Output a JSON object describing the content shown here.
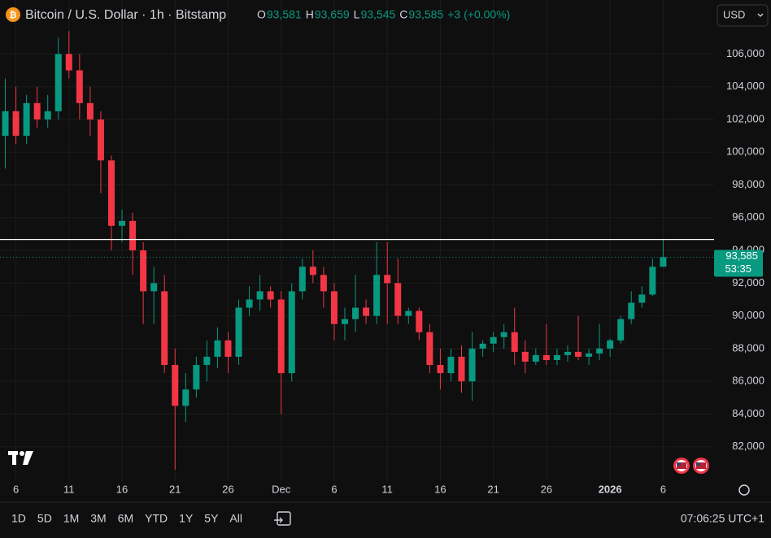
{
  "header": {
    "symbol": "Bitcoin / U.S. Dollar · 1h · Bitstamp",
    "ohlc": [
      {
        "label": "O",
        "value": "93,581"
      },
      {
        "label": "H",
        "value": "93,659"
      },
      {
        "label": "L",
        "value": "93,545"
      },
      {
        "label": "C",
        "value": "93,585"
      }
    ],
    "change": "+3 (+0.00%)",
    "currency": "USD"
  },
  "footer": {
    "ranges": [
      "1D",
      "5D",
      "1M",
      "3M",
      "6M",
      "YTD",
      "1Y",
      "5Y",
      "All"
    ],
    "clock": "07:06:25 UTC+1"
  },
  "chart_data": {
    "type": "candlestick",
    "up_color": "#089981",
    "down_color": "#f23645",
    "xlim": [
      3.5,
      70.8
    ],
    "ylim": [
      79900,
      109300
    ],
    "xticks": [
      {
        "value": 5,
        "label": "6"
      },
      {
        "value": 10,
        "label": "11"
      },
      {
        "value": 15,
        "label": "16"
      },
      {
        "value": 20,
        "label": "21"
      },
      {
        "value": 25,
        "label": "26"
      },
      {
        "value": 30,
        "label": "Dec"
      },
      {
        "value": 35,
        "label": "6"
      },
      {
        "value": 40,
        "label": "11"
      },
      {
        "value": 45,
        "label": "16"
      },
      {
        "value": 50,
        "label": "21"
      },
      {
        "value": 55,
        "label": "26"
      },
      {
        "value": 61,
        "label": "2026"
      },
      {
        "value": 66,
        "label": "6"
      }
    ],
    "yticks": [
      {
        "value": 82000,
        "label": "82,000"
      },
      {
        "value": 84000,
        "label": "84,000"
      },
      {
        "value": 86000,
        "label": "86,000"
      },
      {
        "value": 88000,
        "label": "88,000"
      },
      {
        "value": 90000,
        "label": "90,000"
      },
      {
        "value": 92000,
        "label": "92,000"
      },
      {
        "value": 94000,
        "label": "94,000"
      },
      {
        "value": 96000,
        "label": "96,000"
      },
      {
        "value": 98000,
        "label": "98,000"
      },
      {
        "value": 100000,
        "label": "100,000"
      },
      {
        "value": 102000,
        "label": "102,000"
      },
      {
        "value": 104000,
        "label": "104,000"
      },
      {
        "value": 106000,
        "label": "106,000"
      }
    ],
    "grid": true,
    "x": [
      4,
      5,
      6,
      7,
      8,
      9,
      10,
      11,
      12,
      13,
      14,
      15,
      16,
      17,
      18,
      19,
      20,
      21,
      22,
      23,
      24,
      25,
      26,
      27,
      28,
      29,
      30,
      31,
      32,
      33,
      34,
      35,
      36,
      37,
      38,
      39,
      40,
      41,
      42,
      43,
      44,
      45,
      46,
      47,
      48,
      49,
      50,
      51,
      52,
      53,
      54,
      55,
      56,
      57,
      58,
      59,
      60,
      61,
      62,
      63,
      64,
      65,
      66
    ],
    "open": [
      101000,
      102500,
      101000,
      103000,
      102000,
      102500,
      106000,
      105000,
      103000,
      102000,
      99500,
      95500,
      95800,
      94000,
      91500,
      91500,
      87000,
      84500,
      85500,
      87000,
      87500,
      88500,
      87500,
      90500,
      91000,
      91500,
      91000,
      86500,
      91500,
      93000,
      92500,
      91500,
      89500,
      89800,
      90500,
      90000,
      92500,
      92000,
      90000,
      90300,
      89000,
      87000,
      86500,
      87500,
      86000,
      88000,
      88300,
      88700,
      89000,
      87800,
      87200,
      87600,
      87300,
      87600,
      87800,
      87500,
      87700,
      88000,
      88500,
      89800,
      90800,
      91300,
      93000
    ],
    "high": [
      104500,
      104000,
      103500,
      104000,
      103500,
      107000,
      107400,
      106000,
      104000,
      102500,
      99800,
      96500,
      96300,
      94500,
      93000,
      92500,
      88000,
      86500,
      87500,
      88500,
      89300,
      89000,
      91000,
      91800,
      92500,
      91800,
      91500,
      92000,
      93500,
      94000,
      93000,
      92000,
      90500,
      92500,
      91000,
      94500,
      94500,
      93500,
      90500,
      90500,
      89500,
      88000,
      88000,
      88200,
      89000,
      88500,
      89000,
      89500,
      90500,
      88500,
      88000,
      89500,
      88000,
      88200,
      90000,
      88000,
      89500,
      88600,
      90000,
      91500,
      91800,
      93500,
      94700
    ],
    "low": [
      99000,
      100500,
      100500,
      101500,
      101500,
      102000,
      104500,
      102000,
      101000,
      97500,
      94000,
      94500,
      92500,
      89500,
      89500,
      86500,
      80600,
      83500,
      85000,
      86000,
      86800,
      86500,
      87000,
      90000,
      90300,
      90500,
      84000,
      86000,
      91000,
      92000,
      90500,
      88500,
      88500,
      89000,
      89500,
      89500,
      89500,
      89500,
      89500,
      88500,
      86500,
      85500,
      86000,
      85300,
      84800,
      87500,
      87800,
      88000,
      87000,
      86500,
      87000,
      87000,
      87000,
      87200,
      87300,
      87000,
      87300,
      87500,
      88300,
      89500,
      90500,
      91200,
      93000
    ],
    "close": [
      102500,
      101000,
      103000,
      102000,
      102500,
      106000,
      105000,
      103000,
      102000,
      99500,
      95500,
      95800,
      94000,
      91500,
      92000,
      87000,
      84500,
      85500,
      87000,
      87500,
      88500,
      87500,
      90500,
      91000,
      91500,
      91000,
      86500,
      91500,
      93000,
      92500,
      91500,
      89500,
      89800,
      90500,
      90000,
      92500,
      92000,
      90000,
      90300,
      89000,
      87000,
      86500,
      87500,
      86000,
      88000,
      88300,
      88700,
      89000,
      87800,
      87200,
      87600,
      87300,
      87600,
      87800,
      87500,
      87700,
      88000,
      88500,
      89800,
      90800,
      91300,
      93000,
      93585
    ],
    "horizontal_line": 94670,
    "last_price": 93585,
    "last_price_label": "93,585",
    "countdown": "53:35"
  }
}
